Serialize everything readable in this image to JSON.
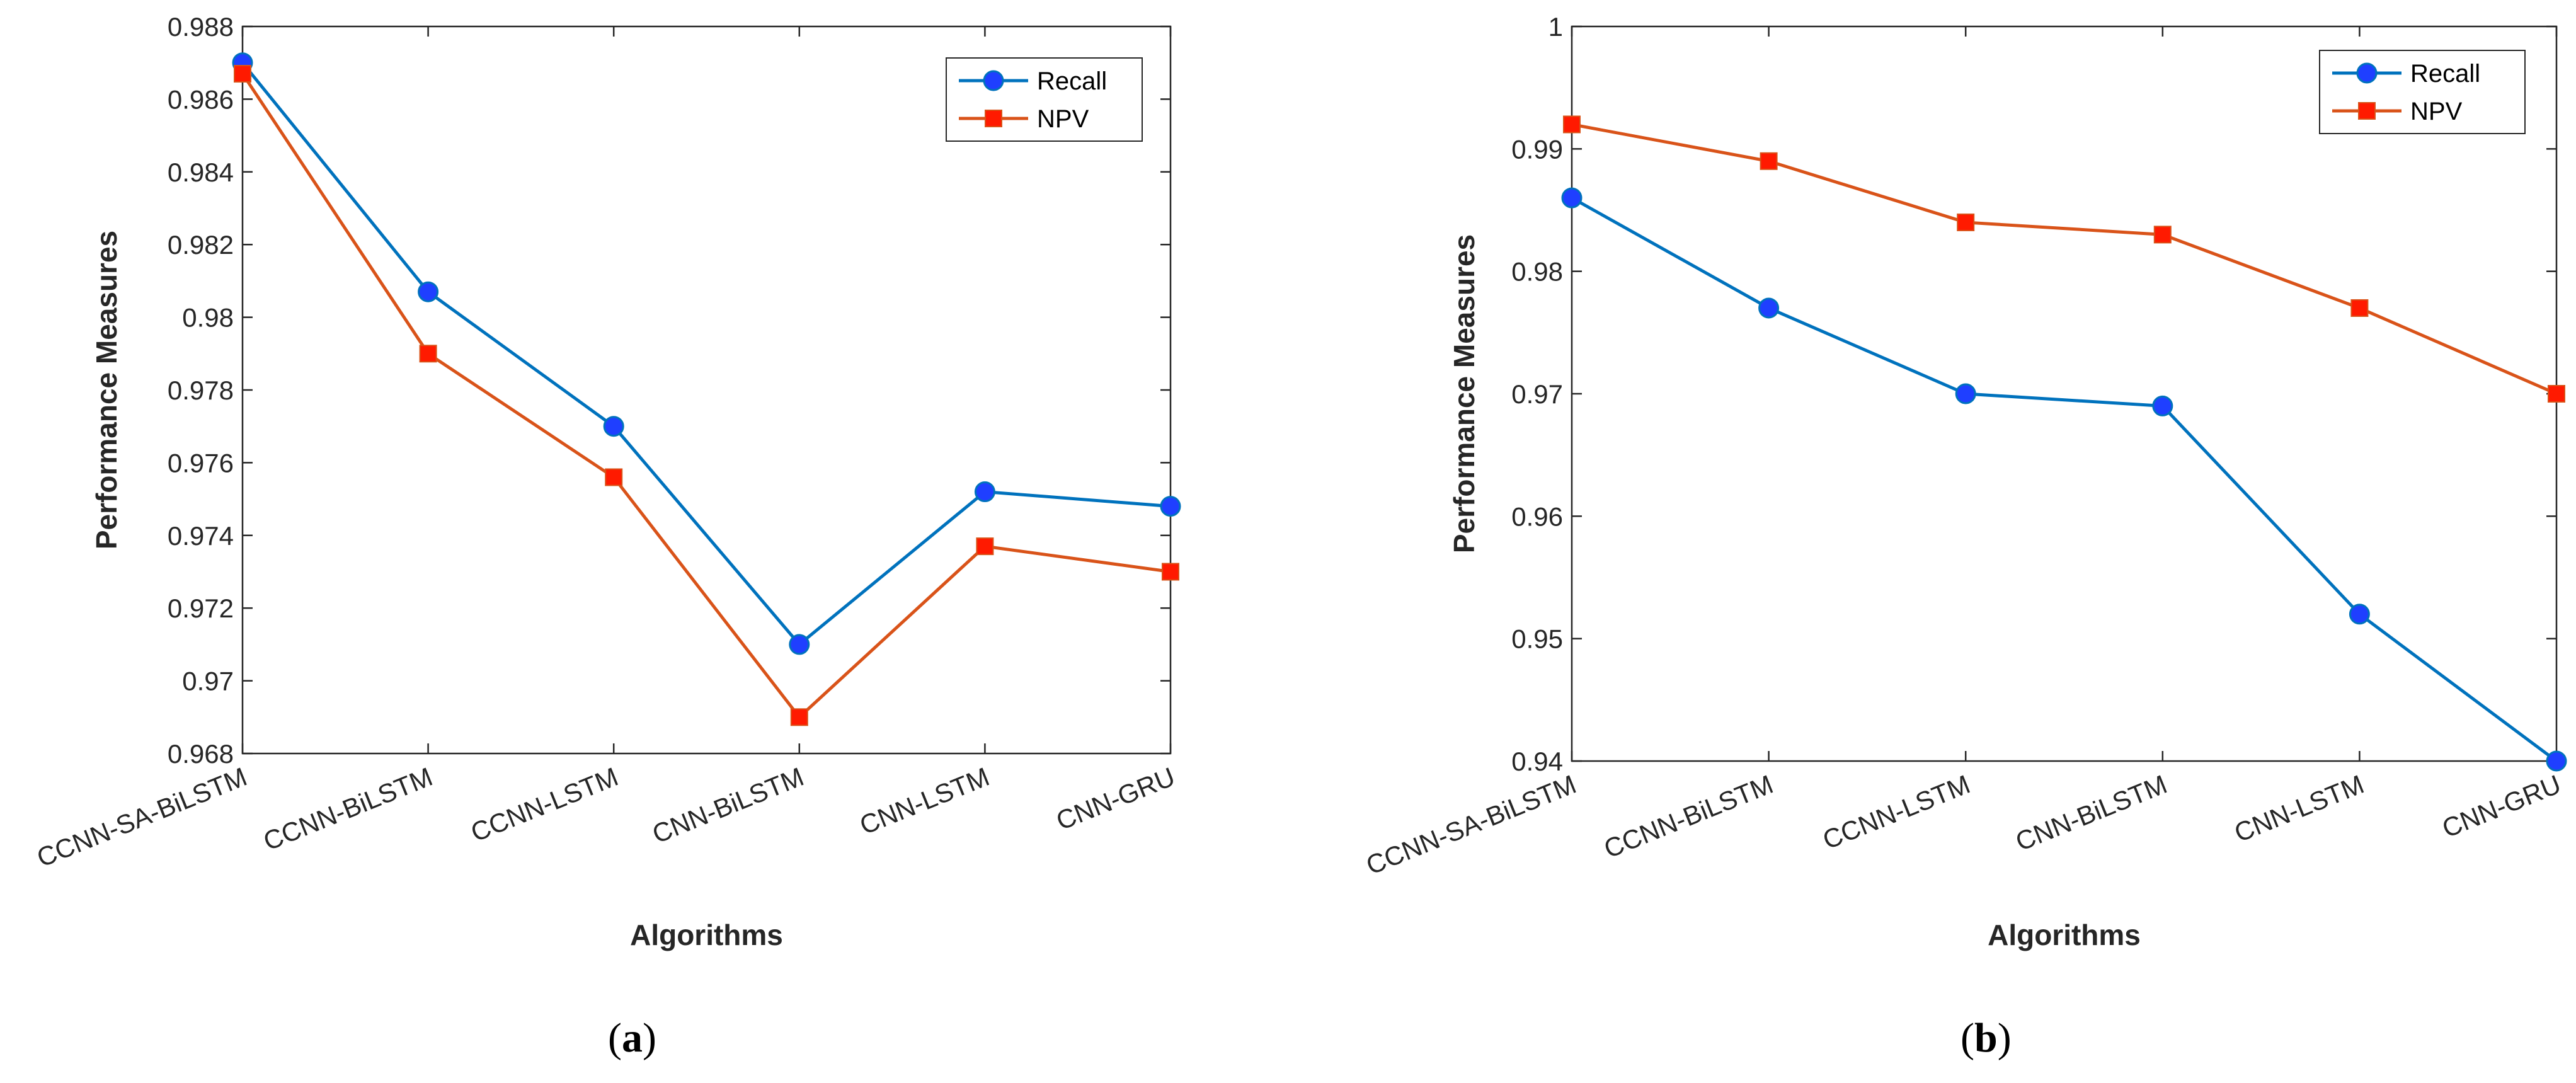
{
  "chart_data": [
    {
      "type": "line",
      "panel": "a",
      "title": "",
      "xlabel": "Algorithms",
      "ylabel": "Performance Measures",
      "categories": [
        "CCNN-SA-BiLSTM",
        "CCNN-BiLSTM",
        "CCNN-LSTM",
        "CNN-BiLSTM",
        "CNN-LSTM",
        "CNN-GRU"
      ],
      "ylim": [
        0.968,
        0.988
      ],
      "yticks": [
        0.968,
        0.97,
        0.972,
        0.974,
        0.976,
        0.978,
        0.98,
        0.982,
        0.984,
        0.986,
        0.988
      ],
      "ytick_labels": [
        "0.968",
        "0.97",
        "0.972",
        "0.974",
        "0.976",
        "0.978",
        "0.98",
        "0.982",
        "0.984",
        "0.986",
        "0.988"
      ],
      "grid": false,
      "legend_position": "top-right",
      "series": [
        {
          "name": "Recall",
          "values": [
            0.987,
            0.9807,
            0.977,
            0.971,
            0.9752,
            0.9748
          ],
          "color": "#0072BD",
          "marker": "circle",
          "marker_color": "#1f3fff"
        },
        {
          "name": "NPV",
          "values": [
            0.9867,
            0.979,
            0.9756,
            0.969,
            0.9737,
            0.973
          ],
          "color": "#D95319",
          "marker": "square",
          "marker_color": "#ff1a00"
        }
      ]
    },
    {
      "type": "line",
      "panel": "b",
      "title": "",
      "xlabel": "Algorithms",
      "ylabel": "Performance Measures",
      "categories": [
        "CCNN-SA-BiLSTM",
        "CCNN-BiLSTM",
        "CCNN-LSTM",
        "CNN-BiLSTM",
        "CNN-LSTM",
        "CNN-GRU"
      ],
      "ylim": [
        0.94,
        1.0
      ],
      "yticks": [
        0.94,
        0.95,
        0.96,
        0.97,
        0.98,
        0.99,
        1.0
      ],
      "ytick_labels": [
        "0.94",
        "0.95",
        "0.96",
        "0.97",
        "0.98",
        "0.99",
        "1"
      ],
      "grid": false,
      "legend_position": "top-right",
      "series": [
        {
          "name": "Recall",
          "values": [
            0.986,
            0.977,
            0.97,
            0.969,
            0.952,
            0.94
          ],
          "color": "#0072BD",
          "marker": "circle",
          "marker_color": "#1f3fff"
        },
        {
          "name": "NPV",
          "values": [
            0.992,
            0.989,
            0.984,
            0.983,
            0.977,
            0.97
          ],
          "color": "#D95319",
          "marker": "square",
          "marker_color": "#ff1a00"
        }
      ]
    }
  ],
  "captions": {
    "a": "a",
    "b": "b"
  }
}
